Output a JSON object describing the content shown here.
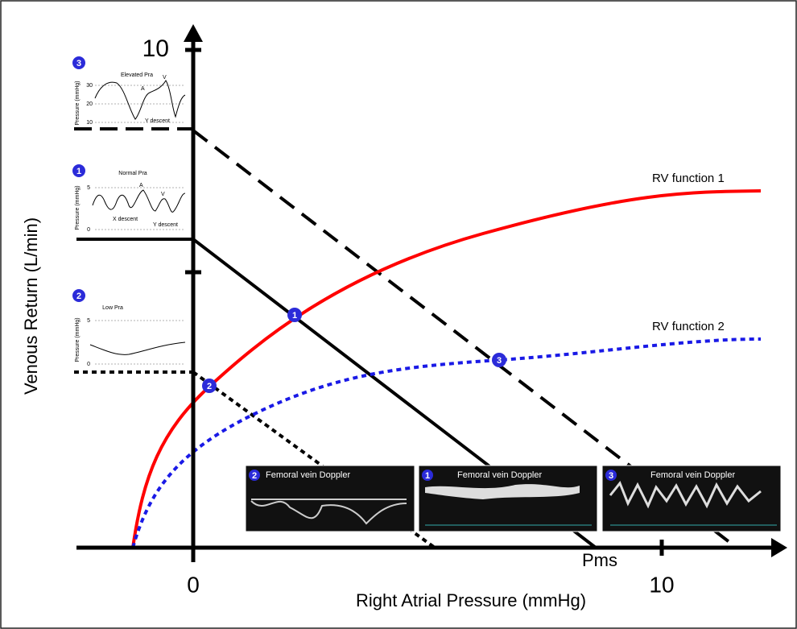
{
  "axes": {
    "y_title": "Venous Return (L/min)",
    "y_tick_top": "10",
    "x_title": "Right Atrial Pressure (mmHg)",
    "x_tick_zero": "0",
    "x_tick_ten": "10",
    "pms": "Pms"
  },
  "curves": {
    "rv1": "RV function 1",
    "rv2": "RV function 2"
  },
  "points": [
    "1",
    "2",
    "3"
  ],
  "insets": [
    {
      "badge": "3",
      "title": "Elevated Pra",
      "y_label": "Pressure (mmHg)",
      "ticks": [
        "30",
        "20",
        "10"
      ],
      "annotations": [
        "A",
        "V",
        "Y descent"
      ]
    },
    {
      "badge": "1",
      "title": "Normal Pra",
      "y_label": "Pressure (mmHg)",
      "ticks": [
        "5",
        "0"
      ],
      "annotations": [
        "A",
        "V",
        "X descent",
        "Y descent"
      ]
    },
    {
      "badge": "2",
      "title": "Low Pra",
      "y_label": "Pressure (mmHg)",
      "ticks": [
        "5",
        "0"
      ]
    }
  ],
  "doppler": [
    {
      "badge": "2",
      "title": "Femoral vein Doppler"
    },
    {
      "badge": "1",
      "title": "Femoral vein Doppler"
    },
    {
      "badge": "3",
      "title": "Femoral vein Doppler"
    }
  ]
}
